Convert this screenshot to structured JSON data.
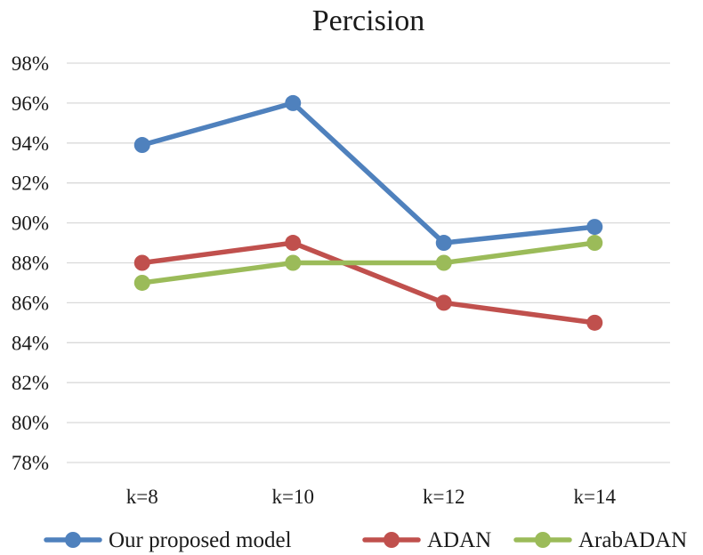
{
  "chart_data": {
    "type": "line",
    "title": "Percision",
    "xlabel": "",
    "ylabel": "",
    "categories": [
      "k=8",
      "k=10",
      "k=12",
      "k=14"
    ],
    "y_ticks": [
      "78%",
      "80%",
      "82%",
      "84%",
      "86%",
      "88%",
      "90%",
      "92%",
      "94%",
      "96%",
      "98%"
    ],
    "ylim": [
      78,
      98
    ],
    "ystep": 2,
    "grid": true,
    "legend_position": "bottom",
    "series": [
      {
        "name": "Our proposed model",
        "color": "#4f81bd",
        "values": [
          93.9,
          96,
          89,
          89.8
        ]
      },
      {
        "name": "ADAN",
        "color": "#c0504d",
        "values": [
          88,
          89,
          86,
          85
        ]
      },
      {
        "name": "ArabADAN",
        "color": "#9bbb59",
        "values": [
          87,
          88,
          88,
          89
        ]
      }
    ]
  }
}
